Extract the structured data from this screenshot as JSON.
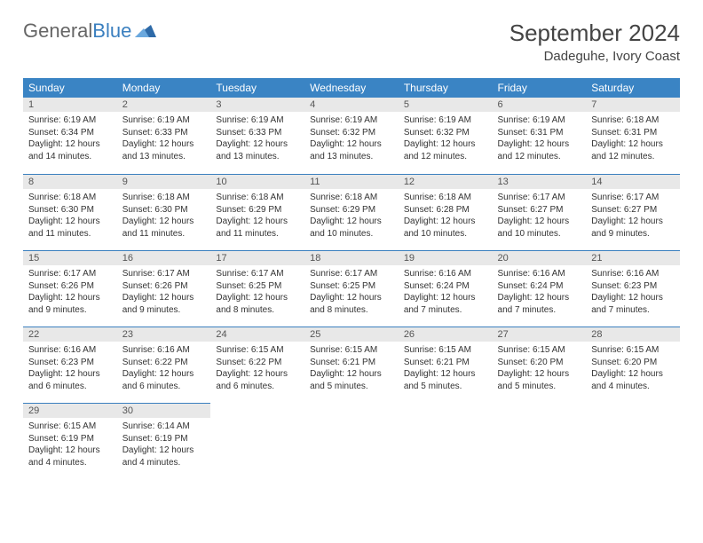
{
  "brand": {
    "general": "General",
    "blue": "Blue"
  },
  "title": "September 2024",
  "location": "Dadeguhe, Ivory Coast",
  "colors": {
    "header_bg": "#3a84c4",
    "header_text": "#ffffff",
    "daynum_bg": "#e8e8e8",
    "border_accent": "#3a7fbf",
    "body_text": "#333333"
  },
  "weekdays": [
    "Sunday",
    "Monday",
    "Tuesday",
    "Wednesday",
    "Thursday",
    "Friday",
    "Saturday"
  ],
  "days": [
    {
      "n": "1",
      "sr": "Sunrise: 6:19 AM",
      "ss": "Sunset: 6:34 PM",
      "d1": "Daylight: 12 hours",
      "d2": "and 14 minutes."
    },
    {
      "n": "2",
      "sr": "Sunrise: 6:19 AM",
      "ss": "Sunset: 6:33 PM",
      "d1": "Daylight: 12 hours",
      "d2": "and 13 minutes."
    },
    {
      "n": "3",
      "sr": "Sunrise: 6:19 AM",
      "ss": "Sunset: 6:33 PM",
      "d1": "Daylight: 12 hours",
      "d2": "and 13 minutes."
    },
    {
      "n": "4",
      "sr": "Sunrise: 6:19 AM",
      "ss": "Sunset: 6:32 PM",
      "d1": "Daylight: 12 hours",
      "d2": "and 13 minutes."
    },
    {
      "n": "5",
      "sr": "Sunrise: 6:19 AM",
      "ss": "Sunset: 6:32 PM",
      "d1": "Daylight: 12 hours",
      "d2": "and 12 minutes."
    },
    {
      "n": "6",
      "sr": "Sunrise: 6:19 AM",
      "ss": "Sunset: 6:31 PM",
      "d1": "Daylight: 12 hours",
      "d2": "and 12 minutes."
    },
    {
      "n": "7",
      "sr": "Sunrise: 6:18 AM",
      "ss": "Sunset: 6:31 PM",
      "d1": "Daylight: 12 hours",
      "d2": "and 12 minutes."
    },
    {
      "n": "8",
      "sr": "Sunrise: 6:18 AM",
      "ss": "Sunset: 6:30 PM",
      "d1": "Daylight: 12 hours",
      "d2": "and 11 minutes."
    },
    {
      "n": "9",
      "sr": "Sunrise: 6:18 AM",
      "ss": "Sunset: 6:30 PM",
      "d1": "Daylight: 12 hours",
      "d2": "and 11 minutes."
    },
    {
      "n": "10",
      "sr": "Sunrise: 6:18 AM",
      "ss": "Sunset: 6:29 PM",
      "d1": "Daylight: 12 hours",
      "d2": "and 11 minutes."
    },
    {
      "n": "11",
      "sr": "Sunrise: 6:18 AM",
      "ss": "Sunset: 6:29 PM",
      "d1": "Daylight: 12 hours",
      "d2": "and 10 minutes."
    },
    {
      "n": "12",
      "sr": "Sunrise: 6:18 AM",
      "ss": "Sunset: 6:28 PM",
      "d1": "Daylight: 12 hours",
      "d2": "and 10 minutes."
    },
    {
      "n": "13",
      "sr": "Sunrise: 6:17 AM",
      "ss": "Sunset: 6:27 PM",
      "d1": "Daylight: 12 hours",
      "d2": "and 10 minutes."
    },
    {
      "n": "14",
      "sr": "Sunrise: 6:17 AM",
      "ss": "Sunset: 6:27 PM",
      "d1": "Daylight: 12 hours",
      "d2": "and 9 minutes."
    },
    {
      "n": "15",
      "sr": "Sunrise: 6:17 AM",
      "ss": "Sunset: 6:26 PM",
      "d1": "Daylight: 12 hours",
      "d2": "and 9 minutes."
    },
    {
      "n": "16",
      "sr": "Sunrise: 6:17 AM",
      "ss": "Sunset: 6:26 PM",
      "d1": "Daylight: 12 hours",
      "d2": "and 9 minutes."
    },
    {
      "n": "17",
      "sr": "Sunrise: 6:17 AM",
      "ss": "Sunset: 6:25 PM",
      "d1": "Daylight: 12 hours",
      "d2": "and 8 minutes."
    },
    {
      "n": "18",
      "sr": "Sunrise: 6:17 AM",
      "ss": "Sunset: 6:25 PM",
      "d1": "Daylight: 12 hours",
      "d2": "and 8 minutes."
    },
    {
      "n": "19",
      "sr": "Sunrise: 6:16 AM",
      "ss": "Sunset: 6:24 PM",
      "d1": "Daylight: 12 hours",
      "d2": "and 7 minutes."
    },
    {
      "n": "20",
      "sr": "Sunrise: 6:16 AM",
      "ss": "Sunset: 6:24 PM",
      "d1": "Daylight: 12 hours",
      "d2": "and 7 minutes."
    },
    {
      "n": "21",
      "sr": "Sunrise: 6:16 AM",
      "ss": "Sunset: 6:23 PM",
      "d1": "Daylight: 12 hours",
      "d2": "and 7 minutes."
    },
    {
      "n": "22",
      "sr": "Sunrise: 6:16 AM",
      "ss": "Sunset: 6:23 PM",
      "d1": "Daylight: 12 hours",
      "d2": "and 6 minutes."
    },
    {
      "n": "23",
      "sr": "Sunrise: 6:16 AM",
      "ss": "Sunset: 6:22 PM",
      "d1": "Daylight: 12 hours",
      "d2": "and 6 minutes."
    },
    {
      "n": "24",
      "sr": "Sunrise: 6:15 AM",
      "ss": "Sunset: 6:22 PM",
      "d1": "Daylight: 12 hours",
      "d2": "and 6 minutes."
    },
    {
      "n": "25",
      "sr": "Sunrise: 6:15 AM",
      "ss": "Sunset: 6:21 PM",
      "d1": "Daylight: 12 hours",
      "d2": "and 5 minutes."
    },
    {
      "n": "26",
      "sr": "Sunrise: 6:15 AM",
      "ss": "Sunset: 6:21 PM",
      "d1": "Daylight: 12 hours",
      "d2": "and 5 minutes."
    },
    {
      "n": "27",
      "sr": "Sunrise: 6:15 AM",
      "ss": "Sunset: 6:20 PM",
      "d1": "Daylight: 12 hours",
      "d2": "and 5 minutes."
    },
    {
      "n": "28",
      "sr": "Sunrise: 6:15 AM",
      "ss": "Sunset: 6:20 PM",
      "d1": "Daylight: 12 hours",
      "d2": "and 4 minutes."
    },
    {
      "n": "29",
      "sr": "Sunrise: 6:15 AM",
      "ss": "Sunset: 6:19 PM",
      "d1": "Daylight: 12 hours",
      "d2": "and 4 minutes."
    },
    {
      "n": "30",
      "sr": "Sunrise: 6:14 AM",
      "ss": "Sunset: 6:19 PM",
      "d1": "Daylight: 12 hours",
      "d2": "and 4 minutes."
    }
  ]
}
